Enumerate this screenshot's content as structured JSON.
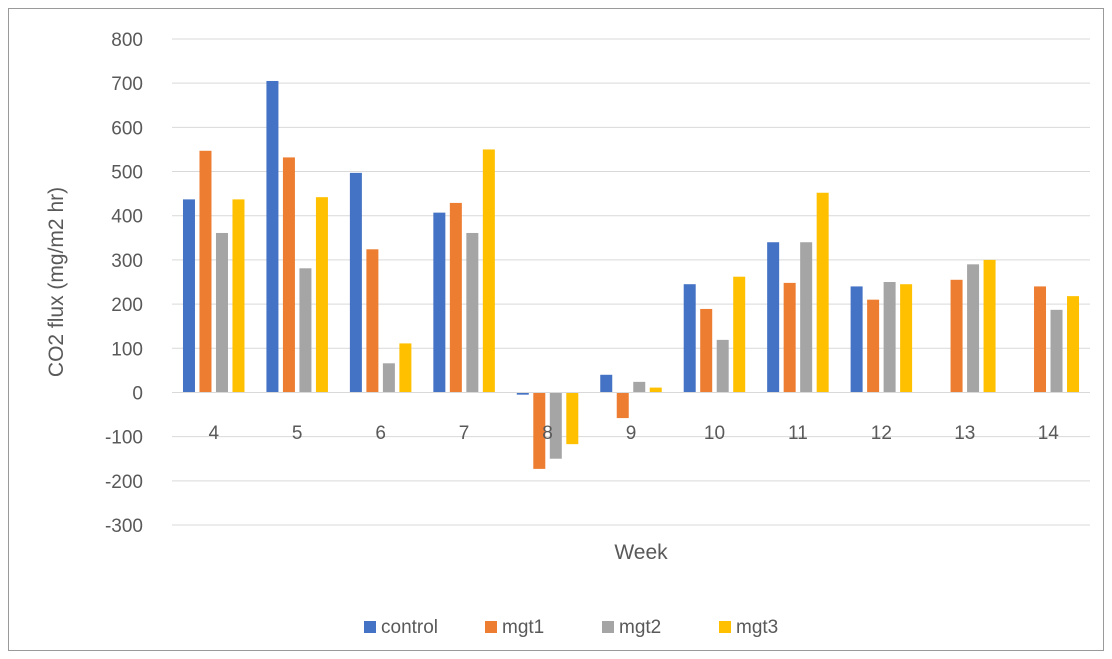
{
  "chart_data": {
    "type": "bar",
    "title": "",
    "xlabel": "Week",
    "ylabel": "CO2 flux (mg/m2 hr)",
    "ylim": [
      -300,
      800
    ],
    "yticks": [
      -300,
      -200,
      -100,
      0,
      100,
      200,
      300,
      400,
      500,
      600,
      700,
      800
    ],
    "grid": true,
    "legend_position": "bottom",
    "categories": [
      "4",
      "5",
      "6",
      "7",
      "8",
      "9",
      "10",
      "11",
      "12",
      "13",
      "14"
    ],
    "series": [
      {
        "name": "control",
        "color": "#4472C4",
        "values": [
          437,
          705,
          497,
          407,
          -5,
          40,
          245,
          340,
          240,
          null,
          null
        ]
      },
      {
        "name": "mgt1",
        "color": "#ED7D31",
        "values": [
          547,
          532,
          324,
          429,
          -173,
          -58,
          189,
          248,
          210,
          255,
          240
        ]
      },
      {
        "name": "mgt2",
        "color": "#A5A5A5",
        "values": [
          361,
          281,
          66,
          361,
          -150,
          24,
          119,
          340,
          250,
          290,
          187
        ]
      },
      {
        "name": "mgt3",
        "color": "#FFC000",
        "values": [
          437,
          442,
          111,
          550,
          -117,
          11,
          262,
          452,
          245,
          300,
          218
        ]
      }
    ]
  }
}
